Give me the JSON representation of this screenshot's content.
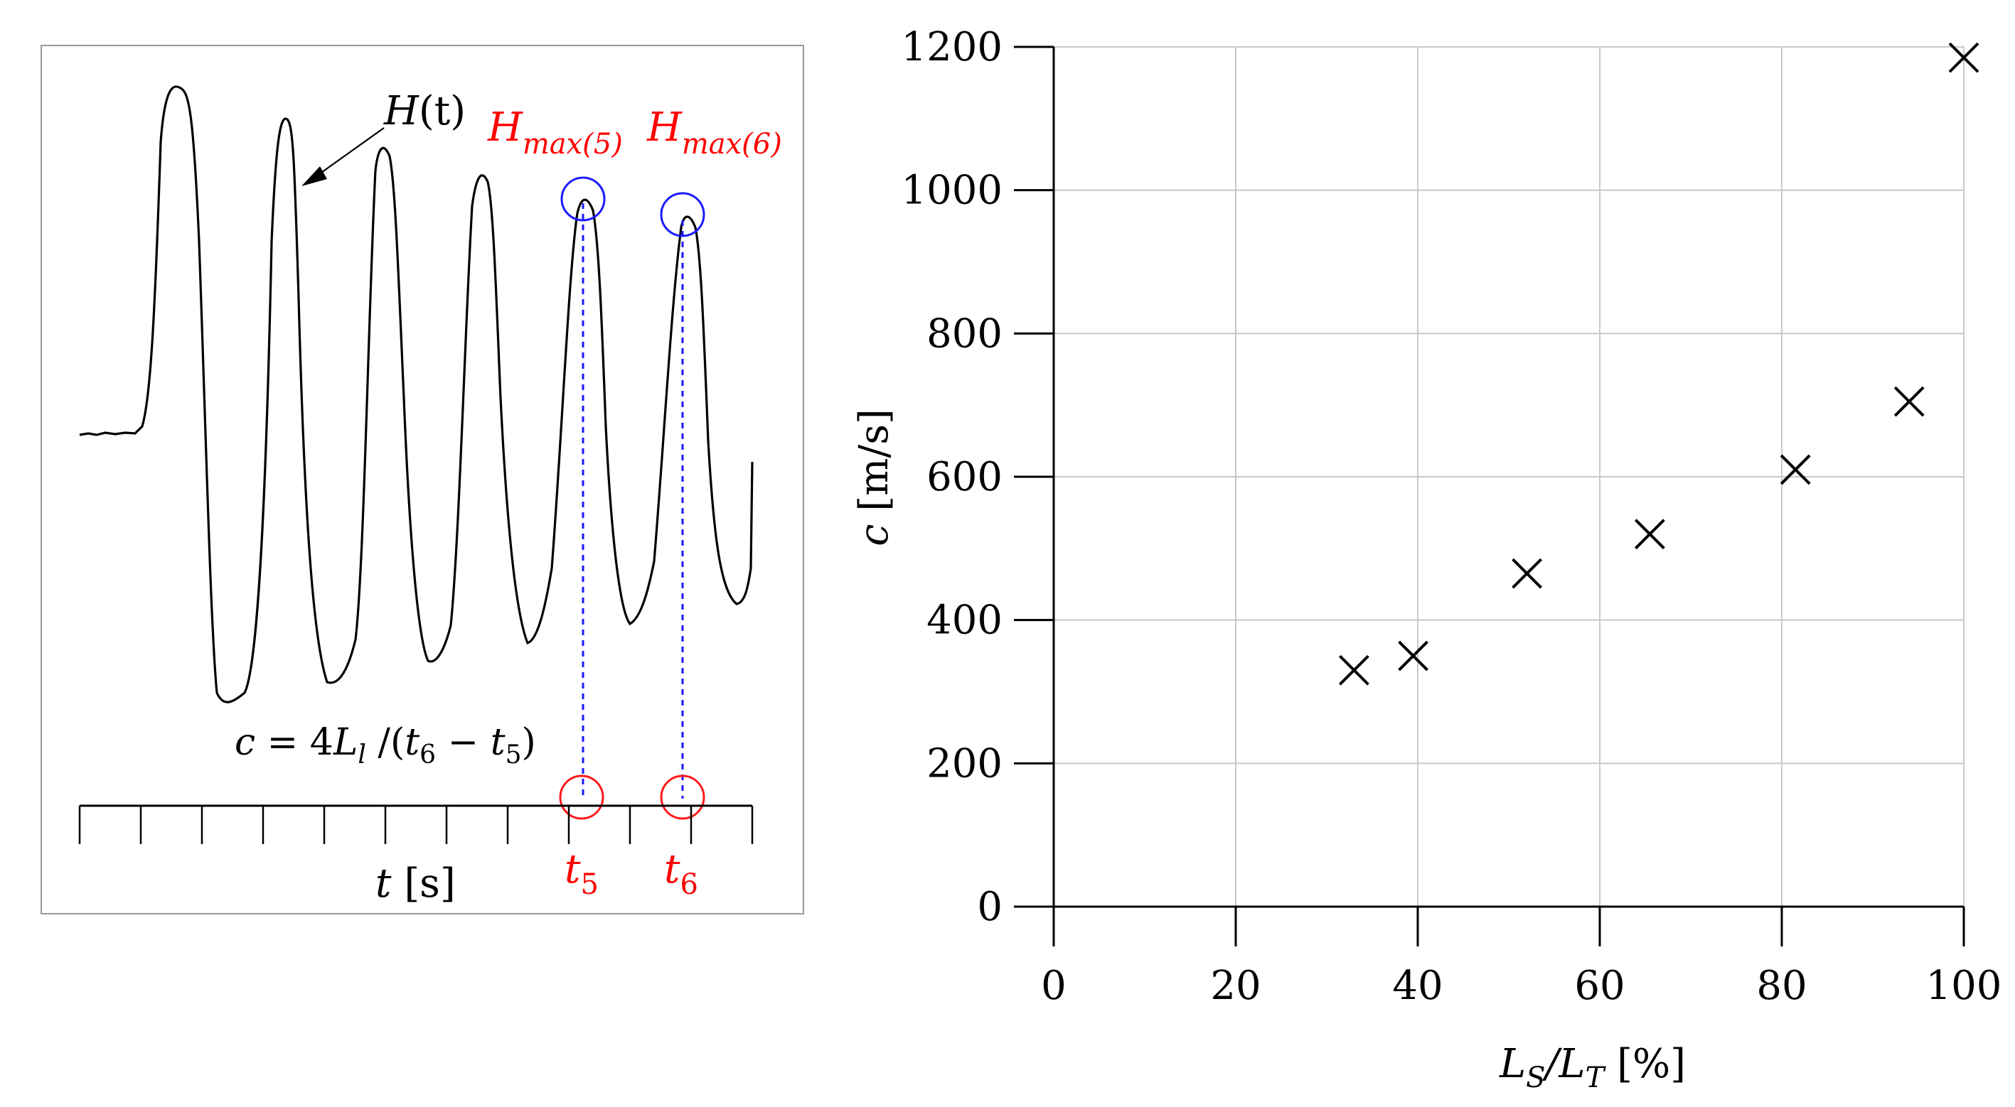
{
  "colors": {
    "curve": "#000000",
    "peak_marker": "#1a1aff",
    "time_marker": "#ff1a1a",
    "annotation_red": "#ff0000",
    "grid": "#c8c8c8",
    "axis": "#000000",
    "frame": "#999999"
  },
  "left_panel": {
    "curve_label": {
      "main": "H",
      "sub": "(t)"
    },
    "peak5_label": {
      "main": "H",
      "sub": "max(5)"
    },
    "peak6_label": {
      "main": "H",
      "sub": "max(6)"
    },
    "formula": {
      "p1": "c",
      "p2": " = 4",
      "p3": "L",
      "p4": "l",
      "p5": " /(",
      "p6": "t",
      "p7": "6",
      "p8": " − ",
      "p9": "t",
      "p10": "5",
      "p11": ")"
    },
    "axis_label": {
      "var": "t",
      "unit": " [s]"
    },
    "t5_label": {
      "main": "t",
      "sub": "5"
    },
    "t6_label": {
      "main": "t",
      "sub": "6"
    }
  },
  "chart_data": {
    "type": "scatter",
    "marker": "x",
    "x": [
      33,
      39.5,
      52,
      65.5,
      81.5,
      94,
      100
    ],
    "y": [
      330,
      350,
      465,
      520,
      610,
      705,
      1185
    ],
    "xlim": [
      0,
      100
    ],
    "ylim": [
      0,
      1200
    ],
    "xticks": [
      0,
      20,
      40,
      60,
      80,
      100
    ],
    "yticks": [
      0,
      200,
      400,
      600,
      800,
      1000,
      1200
    ],
    "xlabel": {
      "main": "L",
      "sub1": "S",
      "slash": "/L",
      "sub2": "T",
      "unit": " [%]"
    },
    "ylabel": {
      "var": "c",
      "unit": " [m/s]"
    },
    "grid": true
  }
}
